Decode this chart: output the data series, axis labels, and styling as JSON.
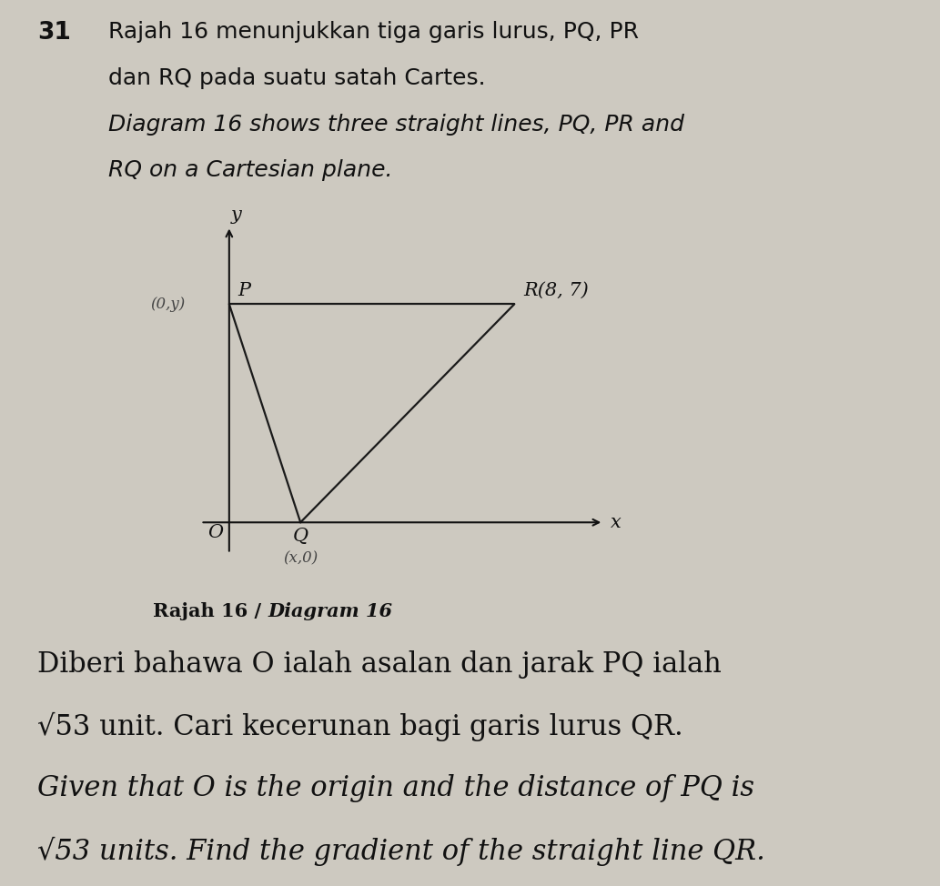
{
  "title_line1": "31  Rajah 16 menunjukkan tiga garis lurus, PQ, PR",
  "title_line2": "     dan RQ pada suatu satah Cartes.",
  "title_line3": "     Diagram 16 shows three straight lines, PQ, PR and",
  "title_line4": "     RQ on a Cartesian plane.",
  "caption": "Rajah 16 / Diagram 16",
  "body_line1": "Diberi bahawa O ialah asalan dan jarak PQ ialah",
  "body_line2": "√53 unit. Cari kecerunan bagi garis lurus QR.",
  "body_line3": "Given that O is the origin and the distance of PQ is",
  "body_line4": "√53 units. Find the gradient of the straight line QR.",
  "P": [
    0,
    7
  ],
  "Q": [
    2,
    0
  ],
  "R": [
    8,
    7
  ],
  "O": [
    0,
    0
  ],
  "P_label": "P",
  "Q_label": "Q",
  "R_label": "R(8, 7)",
  "O_label": "O",
  "P_coord_note": "(0,y)",
  "Q_coord_note": "(x,0)",
  "background_color": "#cdc9c0",
  "line_color": "#1a1a1a",
  "text_color": "#111111",
  "axis_color": "#111111",
  "annotation_color": "#444444"
}
